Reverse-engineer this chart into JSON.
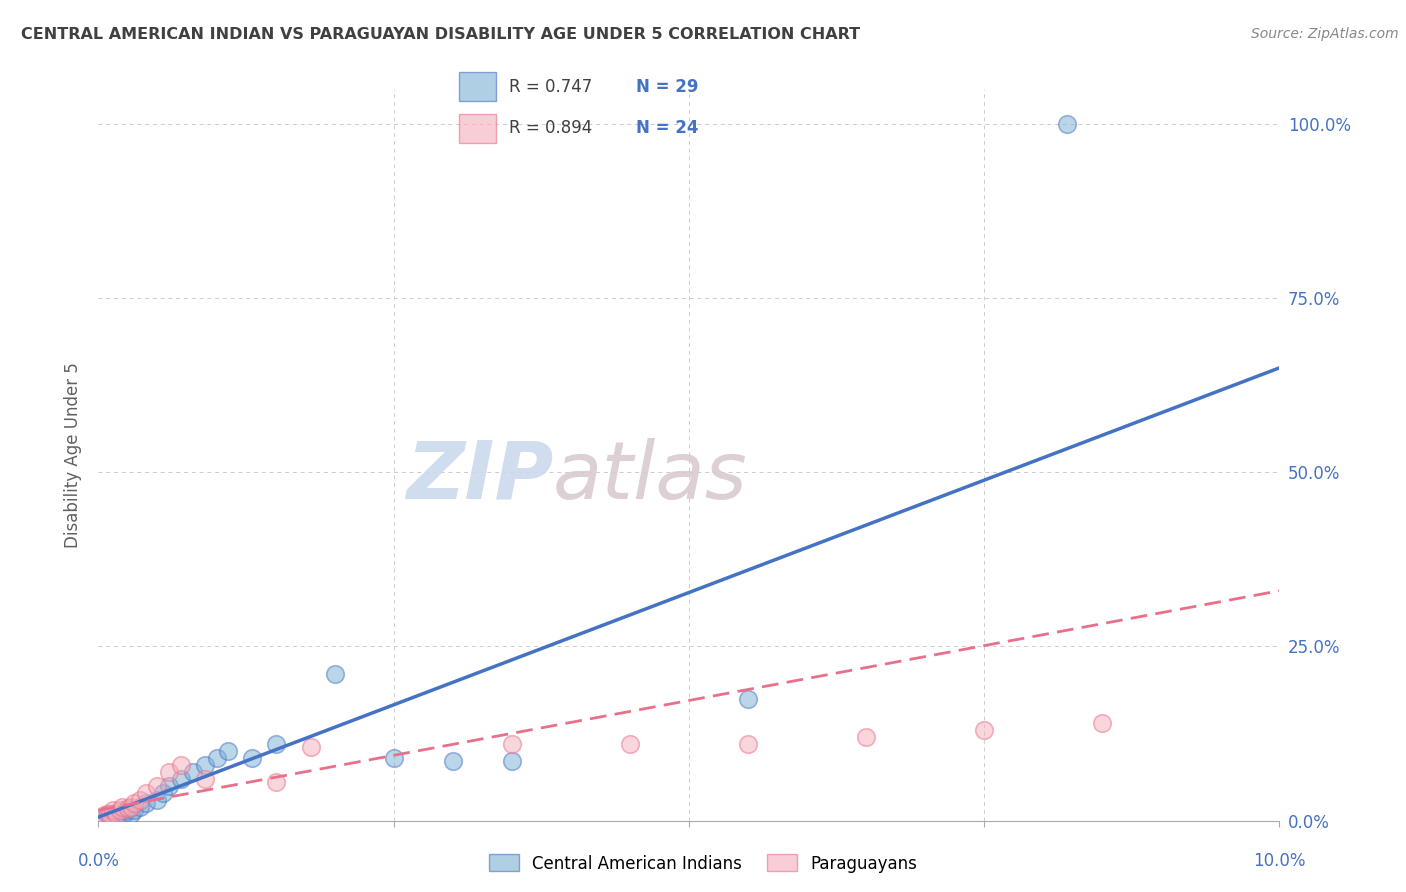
{
  "title": "CENTRAL AMERICAN INDIAN VS PARAGUAYAN DISABILITY AGE UNDER 5 CORRELATION CHART",
  "source": "Source: ZipAtlas.com",
  "ylabel": "Disability Age Under 5",
  "ytick_labels": [
    "0.0%",
    "25.0%",
    "50.0%",
    "75.0%",
    "100.0%"
  ],
  "ytick_values": [
    0,
    25,
    50,
    75,
    100
  ],
  "xlim": [
    0.0,
    10.0
  ],
  "ylim": [
    0,
    105
  ],
  "blue_label": "Central American Indians",
  "pink_label": "Paraguayans",
  "blue_R": "0.747",
  "blue_N": "29",
  "pink_R": "0.894",
  "pink_N": "24",
  "blue_scatter_x": [
    0.05,
    0.08,
    0.1,
    0.12,
    0.14,
    0.18,
    0.2,
    0.22,
    0.25,
    0.28,
    0.3,
    0.35,
    0.4,
    0.5,
    0.55,
    0.6,
    0.7,
    0.8,
    0.9,
    1.0,
    1.1,
    1.3,
    1.5,
    2.0,
    2.5,
    3.0,
    3.5,
    5.5,
    8.2
  ],
  "blue_scatter_y": [
    0.5,
    1,
    0.8,
    1,
    0.8,
    1,
    0.8,
    1,
    1.5,
    1,
    1.5,
    2,
    2.5,
    3,
    4,
    5,
    6,
    7,
    8,
    9,
    10,
    9,
    11,
    21,
    9,
    8.5,
    8.5,
    17.5,
    100
  ],
  "pink_scatter_x": [
    0.05,
    0.08,
    0.1,
    0.12,
    0.15,
    0.18,
    0.2,
    0.25,
    0.28,
    0.3,
    0.35,
    0.4,
    0.5,
    0.6,
    0.7,
    0.9,
    1.5,
    1.8,
    3.5,
    4.5,
    5.5,
    6.5,
    7.5,
    8.5
  ],
  "pink_scatter_y": [
    0.8,
    1,
    1,
    1.5,
    1,
    1.5,
    2,
    1.8,
    2,
    2.5,
    3,
    4,
    5,
    7,
    8,
    6,
    5.5,
    10.5,
    11,
    11,
    11,
    12,
    13,
    14
  ],
  "blue_line_x": [
    0.0,
    10.0
  ],
  "blue_line_y": [
    0.5,
    65
  ],
  "pink_line_x": [
    0.0,
    10.0
  ],
  "pink_line_y": [
    1.5,
    33
  ],
  "blue_color": "#7BAFD4",
  "blue_color_edge": "#7BAFD4",
  "blue_line_color": "#4472C4",
  "pink_color": "#F4ACBA",
  "pink_color_edge": "#F4ACBA",
  "pink_line_color": "#E8708A",
  "watermark_zip": "ZIP",
  "watermark_atlas": "atlas",
  "background_color": "#FFFFFF",
  "grid_color": "#CCCCCC",
  "axis_label_color": "#4472C4",
  "title_color": "#404040",
  "ylabel_color": "#606060",
  "source_color": "#888888"
}
